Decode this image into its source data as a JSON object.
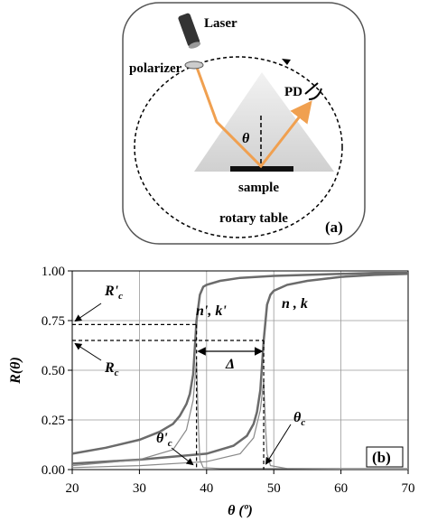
{
  "diagram": {
    "laser": "Laser",
    "polarizer": "polarizer",
    "detector": "PD",
    "angle": "θ",
    "sample": "sample",
    "table": "rotary table",
    "panel": "(a)"
  },
  "chart_data": {
    "type": "line",
    "panel": "(b)",
    "x_label": "θ (º)",
    "y_label": "R(θ)",
    "xlim": [
      20,
      70
    ],
    "xticks": [
      20,
      30,
      40,
      50,
      60,
      70
    ],
    "ylim": [
      0,
      1
    ],
    "yticks": [
      {
        "value": 0,
        "label": "0.00"
      },
      {
        "value": 0.25,
        "label": "0.25"
      },
      {
        "value": 0.5,
        "label": "0.50"
      },
      {
        "value": 0.75,
        "label": "0.75"
      },
      {
        "value": 1,
        "label": "1.00"
      }
    ],
    "grid": true,
    "series": [
      {
        "color": "#6b6b6b",
        "linewidth": 2.5,
        "x": [
          20,
          25,
          30,
          33,
          35,
          36,
          37,
          37.5,
          38,
          38.5,
          39,
          39.5,
          40,
          42,
          45,
          50,
          55,
          60,
          65,
          70
        ],
        "values": [
          0.08,
          0.11,
          0.15,
          0.19,
          0.23,
          0.27,
          0.33,
          0.38,
          0.48,
          0.75,
          0.88,
          0.92,
          0.93,
          0.95,
          0.965,
          0.975,
          0.98,
          0.985,
          0.99,
          0.99
        ]
      },
      {
        "color": "#6b6b6b",
        "linewidth": 2.5,
        "x": [
          20,
          30,
          40,
          44,
          46,
          47,
          47.5,
          48,
          48.5,
          49,
          49.5,
          50,
          52,
          55,
          60,
          65,
          70
        ],
        "values": [
          0.03,
          0.05,
          0.08,
          0.12,
          0.17,
          0.23,
          0.29,
          0.4,
          0.65,
          0.83,
          0.88,
          0.9,
          0.93,
          0.95,
          0.97,
          0.98,
          0.985
        ]
      },
      {
        "color": "#8a8a8a",
        "linewidth": 1.2,
        "x": [
          20,
          30,
          35,
          37,
          38,
          38.5,
          38.8,
          39,
          39.5,
          42,
          50,
          70
        ],
        "values": [
          0.02,
          0.05,
          0.1,
          0.2,
          0.35,
          0.55,
          0.2,
          0.05,
          0.01,
          0.005,
          0.005,
          0.005
        ]
      },
      {
        "color": "#8a8a8a",
        "linewidth": 1.2,
        "x": [
          20,
          30,
          40,
          45,
          47,
          48,
          48.5,
          48.8,
          49,
          49.5,
          52,
          60,
          70
        ],
        "values": [
          0.01,
          0.02,
          0.04,
          0.08,
          0.16,
          0.3,
          0.45,
          0.2,
          0.08,
          0.02,
          0.005,
          0.003,
          0.003
        ]
      }
    ],
    "critical_points": [
      {
        "theta": 38.5,
        "R": 0.73,
        "label": "R'",
        "sub": "c",
        "angle_label": "θ'",
        "angle_sub": "c",
        "curve_label": "n', k'"
      },
      {
        "theta": 48.5,
        "R": 0.65,
        "label": "R",
        "sub": "c",
        "angle_label": "θ",
        "angle_sub": "c",
        "curve_label": "n , k"
      }
    ],
    "shift_label": "Δ"
  }
}
